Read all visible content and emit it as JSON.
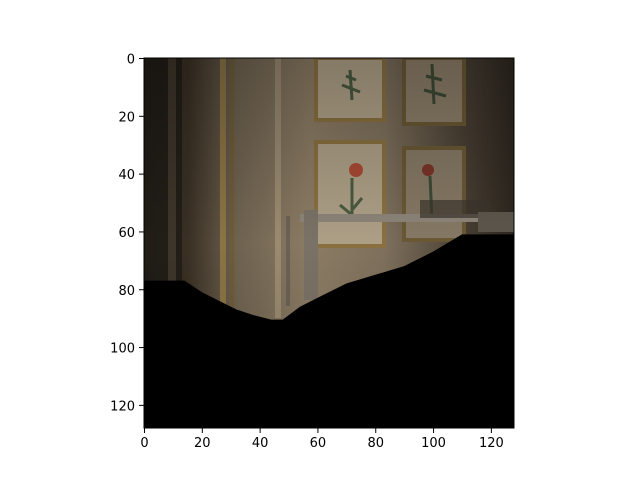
{
  "chart_data": {
    "type": "heatmap",
    "title": "",
    "xlabel": "",
    "ylabel": "",
    "image_size": [
      128,
      128
    ],
    "xlim": [
      0,
      128
    ],
    "ylim": [
      128,
      0
    ],
    "x_ticks": [
      0,
      20,
      40,
      60,
      80,
      100,
      120
    ],
    "y_ticks": [
      0,
      20,
      40,
      60,
      80,
      100,
      120
    ],
    "grid": false,
    "mask_boundary": [
      [
        0,
        77
      ],
      [
        14,
        77
      ],
      [
        20,
        81
      ],
      [
        26,
        84
      ],
      [
        32,
        87
      ],
      [
        38,
        89
      ],
      [
        44,
        90.5
      ],
      [
        48,
        90.5
      ],
      [
        54,
        86
      ],
      [
        60,
        83
      ],
      [
        70,
        78
      ],
      [
        80,
        75
      ],
      [
        90,
        72
      ],
      [
        100,
        67
      ],
      [
        110,
        61
      ],
      [
        128,
        61
      ]
    ],
    "colors": {
      "mask": "#000000",
      "wall": "#8a7a63",
      "frame": "#a08a5e",
      "flower": "#8a3a2a",
      "leaf": "#4a5a40"
    }
  }
}
